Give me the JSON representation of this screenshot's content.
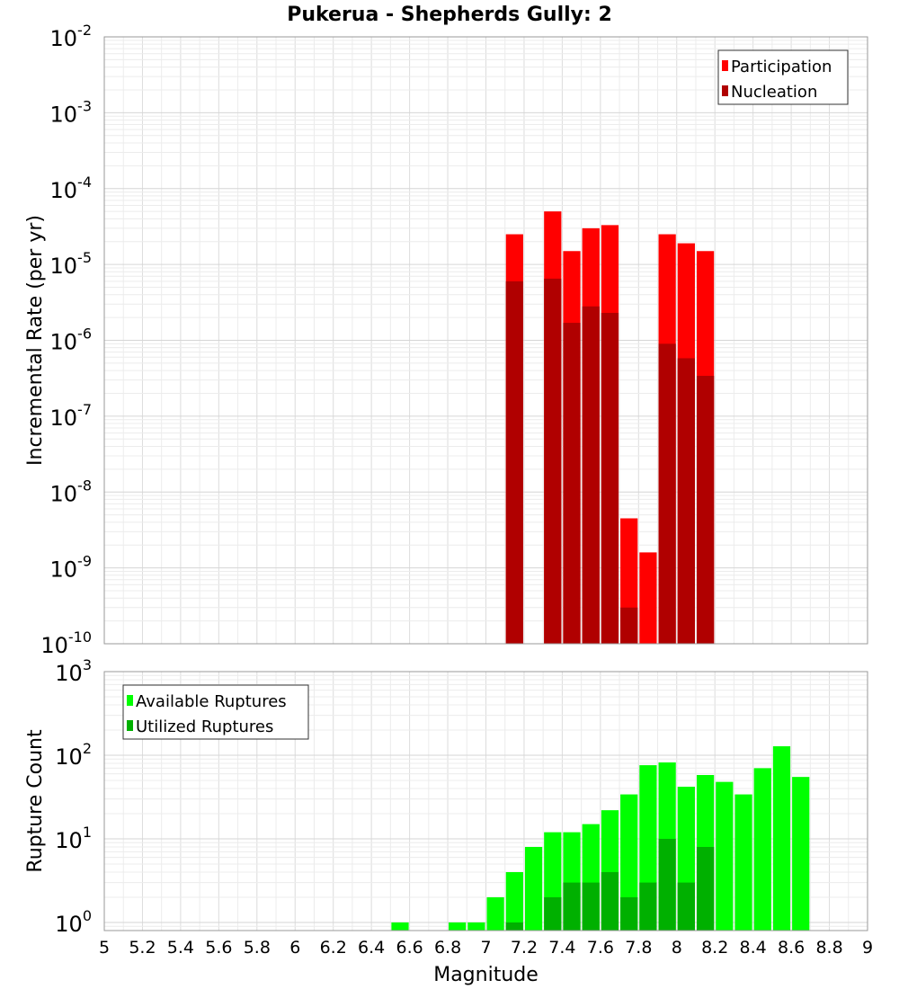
{
  "title": "Pukerua - Shepherds Gully: 2",
  "chart_data": [
    {
      "type": "bar",
      "ylabel": "Incremental Rate (per yr)",
      "yscale": "log",
      "ylim": [
        1e-10,
        0.01
      ],
      "xlim": [
        5,
        9
      ],
      "bin_width": 0.1,
      "legend_position": "top-right",
      "series": [
        {
          "name": "Participation",
          "color": "#ff0000",
          "x": [
            7.15,
            7.35,
            7.45,
            7.55,
            7.65,
            7.75,
            7.85,
            7.95,
            8.05,
            8.15
          ],
          "values": [
            2.5e-05,
            5e-05,
            1.5e-05,
            3e-05,
            3.3e-05,
            4.5e-09,
            1.6e-09,
            2.5e-05,
            1.9e-05,
            1.5e-05
          ]
        },
        {
          "name": "Nucleation",
          "color": "#b00000",
          "x": [
            7.15,
            7.35,
            7.45,
            7.55,
            7.65,
            7.75,
            7.95,
            8.05,
            8.15
          ],
          "values": [
            6e-06,
            6.5e-06,
            1.7e-06,
            2.8e-06,
            2.3e-06,
            3e-10,
            9e-07,
            5.8e-07,
            3.4e-07
          ]
        }
      ]
    },
    {
      "type": "bar",
      "ylabel": "Rupture Count",
      "xlabel": "Magnitude",
      "yscale": "log",
      "ylim": [
        0.8,
        1000
      ],
      "xlim": [
        5,
        9
      ],
      "bin_width": 0.1,
      "legend_position": "top-left",
      "xticks": [
        "5",
        "5.2",
        "5.4",
        "5.6",
        "5.8",
        "6",
        "6.2",
        "6.4",
        "6.6",
        "6.8",
        "7",
        "7.2",
        "7.4",
        "7.6",
        "7.8",
        "8",
        "8.2",
        "8.4",
        "8.6",
        "8.8",
        "9"
      ],
      "series": [
        {
          "name": "Available Ruptures",
          "color": "#00ff00",
          "x": [
            6.55,
            6.85,
            6.95,
            7.05,
            7.15,
            7.25,
            7.35,
            7.45,
            7.55,
            7.65,
            7.75,
            7.85,
            7.95,
            8.05,
            8.15,
            8.25,
            8.35,
            8.45,
            8.55,
            8.65
          ],
          "values": [
            1,
            1,
            1,
            2,
            4,
            8,
            12,
            12,
            15,
            22,
            34,
            76,
            82,
            42,
            58,
            48,
            34,
            70,
            128,
            55
          ]
        },
        {
          "name": "Utilized Ruptures",
          "color": "#00b000",
          "x": [
            7.15,
            7.35,
            7.45,
            7.55,
            7.65,
            7.75,
            7.85,
            7.95,
            8.05,
            8.15
          ],
          "values": [
            1,
            2,
            3,
            3,
            4,
            2,
            3,
            10,
            3,
            8
          ]
        }
      ]
    }
  ]
}
